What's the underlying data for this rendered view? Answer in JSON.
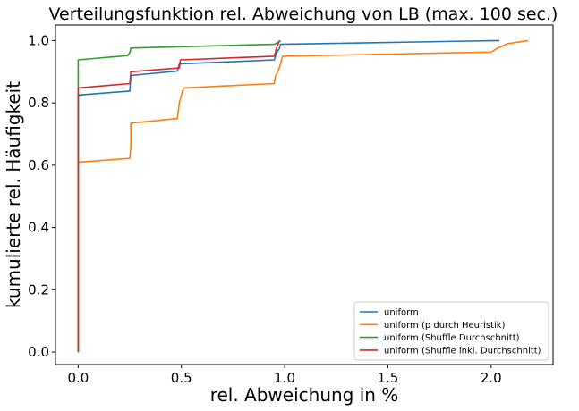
{
  "chart_data": {
    "type": "line",
    "title": "Verteilungsfunktion rel. Abweichung von LB (max. 100 sec.)",
    "xlabel": "rel. Abweichung in %",
    "ylabel": "kumulierte rel. Häufigkeit",
    "xlim": [
      -0.11,
      2.3
    ],
    "ylim": [
      -0.04,
      1.05
    ],
    "xticks": [
      0.0,
      0.5,
      1.0,
      1.5,
      2.0
    ],
    "xtick_labels": [
      "0.0",
      "0.5",
      "1.0",
      "1.5",
      "2.0"
    ],
    "yticks": [
      0.0,
      0.2,
      0.4,
      0.6,
      0.8,
      1.0
    ],
    "ytick_labels": [
      "0.0",
      "0.2",
      "0.4",
      "0.6",
      "0.8",
      "1.0"
    ],
    "grid": false,
    "legend_position": "lower-right",
    "series": [
      {
        "name": "uniform",
        "color": "#1f77b4",
        "x": [
          0,
          0,
          0.25,
          0.255,
          0.48,
          0.49,
          0.95,
          0.96,
          0.975,
          0.98,
          2.04
        ],
        "y": [
          0,
          0.825,
          0.838,
          0.888,
          0.902,
          0.925,
          0.938,
          0.96,
          0.975,
          0.988,
          1.0
        ]
      },
      {
        "name": "uniform (p durch Heuristik)",
        "color": "#ff7f0e",
        "x": [
          0,
          0,
          0.25,
          0.255,
          0.255,
          0.48,
          0.485,
          0.49,
          0.51,
          0.95,
          0.955,
          0.97,
          0.98,
          0.99,
          2.0,
          2.03,
          2.08,
          2.18
        ],
        "y": [
          0,
          0.61,
          0.622,
          0.66,
          0.735,
          0.75,
          0.775,
          0.8,
          0.848,
          0.862,
          0.885,
          0.905,
          0.925,
          0.95,
          0.963,
          0.975,
          0.99,
          1.0
        ],
        "marker_label": "",
        "note": ""
      },
      {
        "name": "uniform (Shuffle Durchschnitt)",
        "color": "#2ca02c",
        "x": [
          0,
          0,
          0.24,
          0.25,
          0.255,
          0.95,
          0.97,
          0.98
        ],
        "y": [
          0,
          0.938,
          0.952,
          0.962,
          0.976,
          0.988,
          0.995,
          1.0
        ]
      },
      {
        "name": "uniform (Shuffle inkl. Durchschnitt)",
        "color": "#d62728",
        "x": [
          0,
          0,
          0.25,
          0.255,
          0.49,
          0.495,
          0.95,
          0.96,
          0.975
        ],
        "y": [
          0,
          0.848,
          0.862,
          0.9,
          0.912,
          0.938,
          0.95,
          0.975,
          1.0
        ]
      }
    ]
  }
}
